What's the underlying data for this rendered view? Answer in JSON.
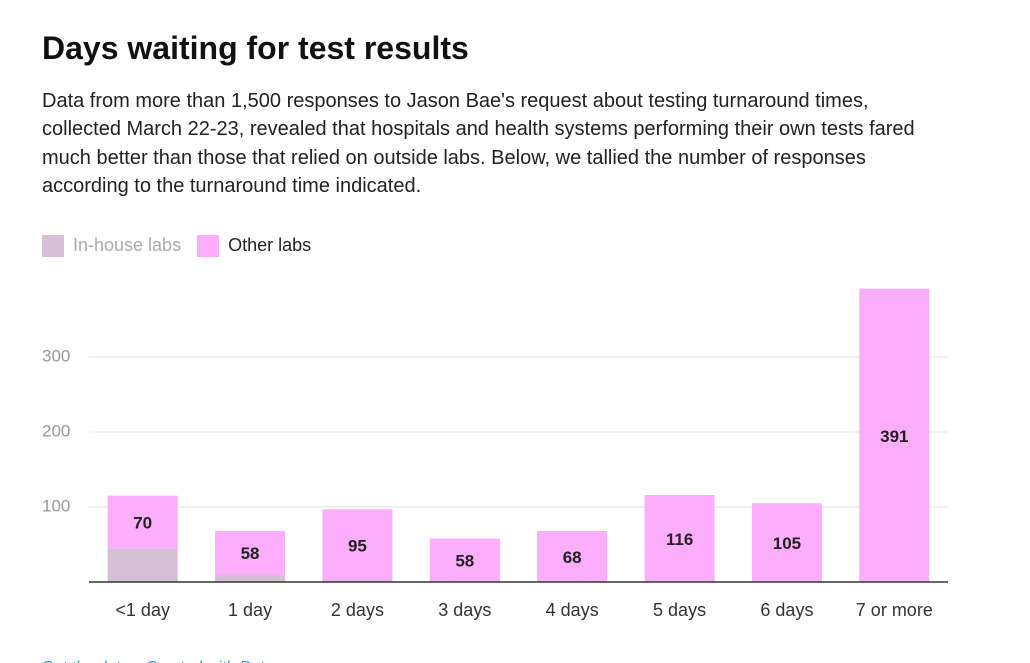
{
  "chart_data": {
    "type": "stacked_bar",
    "title": "Days waiting for test results",
    "subtitle": "Data from more than 1,500 responses to Jason Bae's request about testing turnaround times, collected March 22-23, revealed that hospitals and health systems performing their own tests fared much better than those that relied on outside labs. Below, we tallied the number of responses according to the turnaround time indicated.",
    "categories": [
      "<1 day",
      "1 day",
      "2 days",
      "3 days",
      "4 days",
      "5 days",
      "6 days",
      "7 or more"
    ],
    "series": [
      {
        "name": "In-house labs",
        "color": "#d8bfd8",
        "values": [
          45,
          10,
          2,
          0,
          0,
          0,
          0,
          0
        ]
      },
      {
        "name": "Other labs",
        "color": "#fcaefc",
        "values": [
          70,
          58,
          95,
          58,
          68,
          116,
          105,
          391
        ]
      }
    ],
    "ylim": [
      0,
      400
    ],
    "yticks": [
      100,
      200,
      300
    ],
    "grid": true,
    "footer": [
      "Get the data",
      "Created with Datawrapper"
    ]
  }
}
